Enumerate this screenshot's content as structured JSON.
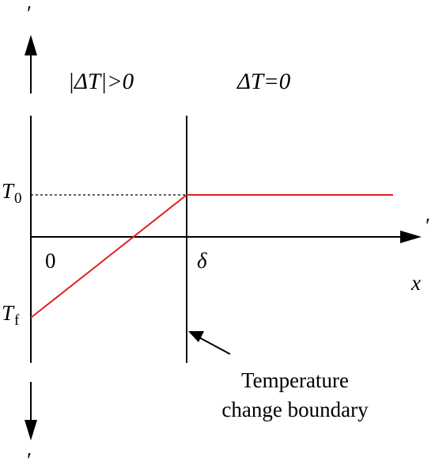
{
  "labels": {
    "region_left": "|ΔT|>0",
    "region_right": "ΔT=0",
    "t0_symbol": "T",
    "t0_subscript": "0",
    "tf_symbol": "T",
    "tf_subscript": "f",
    "origin": "0",
    "delta": "δ",
    "x_axis": "x",
    "apostrophe_top": "′",
    "apostrophe_right": "′",
    "apostrophe_bottom": "′",
    "caption_line1": "Temperature",
    "caption_line2": "change boundary"
  },
  "colors": {
    "profile": "#e0201b",
    "axes": "#000000"
  }
}
